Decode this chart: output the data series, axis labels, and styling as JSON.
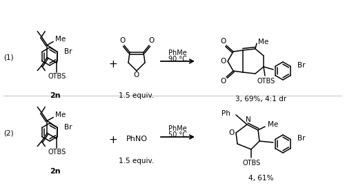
{
  "bg_color": "#ffffff",
  "line_color": "#000000",
  "reaction1": {
    "label": "(1)",
    "reactant1_name": "2n",
    "reactant2_label": "1.5 equiv.",
    "conditions": [
      "PhMe",
      "90 °C"
    ],
    "product_name": "3, 69%, 4:1 dr"
  },
  "reaction2": {
    "label": "(2)",
    "reactant1_name": "2n",
    "reactant2_text": "PhNO",
    "reactant2_label": "1.5 equiv.",
    "conditions": [
      "PhMe",
      "50 °C"
    ],
    "product_name": "4, 61%"
  }
}
